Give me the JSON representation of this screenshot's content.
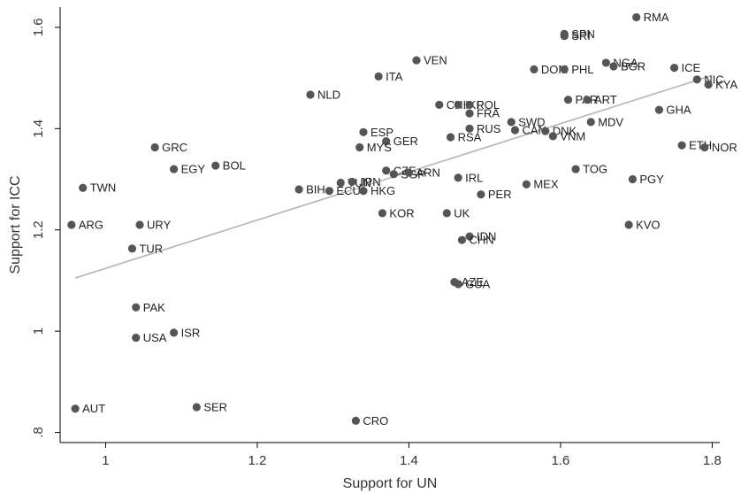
{
  "chart_data": {
    "type": "scatter",
    "xlabel": "Support for UN",
    "ylabel": "Support for ICC",
    "xlim": [
      0.94,
      1.81
    ],
    "ylim": [
      0.78,
      1.64
    ],
    "grid": false,
    "x_ticks": [
      {
        "value": 1,
        "label": "1"
      },
      {
        "value": 1.2,
        "label": "1.2"
      },
      {
        "value": 1.4,
        "label": "1.4"
      },
      {
        "value": 1.6,
        "label": "1.6"
      },
      {
        "value": 1.8,
        "label": "1.8"
      }
    ],
    "y_ticks": [
      {
        "value": 0.8,
        "label": ".8"
      },
      {
        "value": 1,
        "label": "1"
      },
      {
        "value": 1.2,
        "label": "1.2"
      },
      {
        "value": 1.4,
        "label": "1.4"
      },
      {
        "value": 1.6,
        "label": "1.6"
      }
    ],
    "fit_line": {
      "x": [
        0.96,
        1.8
      ],
      "y": [
        1.105,
        1.505
      ]
    },
    "points": [
      {
        "label": "RMA",
        "x": 1.7,
        "y": 1.62
      },
      {
        "label": "SPN",
        "x": 1.605,
        "y": 1.587
      },
      {
        "label": "SRI",
        "x": 1.605,
        "y": 1.583
      },
      {
        "label": "VEN",
        "x": 1.41,
        "y": 1.535
      },
      {
        "label": "NGA",
        "x": 1.66,
        "y": 1.53
      },
      {
        "label": "BGR",
        "x": 1.67,
        "y": 1.523
      },
      {
        "label": "ICE",
        "x": 1.75,
        "y": 1.52
      },
      {
        "label": "DOM",
        "x": 1.565,
        "y": 1.517
      },
      {
        "label": "PHL",
        "x": 1.605,
        "y": 1.517
      },
      {
        "label": "ITA",
        "x": 1.36,
        "y": 1.503
      },
      {
        "label": "NIC",
        "x": 1.78,
        "y": 1.497
      },
      {
        "label": "KYA",
        "x": 1.795,
        "y": 1.487
      },
      {
        "label": "NLD",
        "x": 1.27,
        "y": 1.467
      },
      {
        "label": "PAR",
        "x": 1.61,
        "y": 1.457
      },
      {
        "label": "ART",
        "x": 1.635,
        "y": 1.457
      },
      {
        "label": "CHI",
        "x": 1.44,
        "y": 1.447
      },
      {
        "label": "IKR",
        "x": 1.465,
        "y": 1.447
      },
      {
        "label": "POL",
        "x": 1.48,
        "y": 1.447
      },
      {
        "label": "FRA",
        "x": 1.48,
        "y": 1.43
      },
      {
        "label": "GHA",
        "x": 1.73,
        "y": 1.437
      },
      {
        "label": "SWD",
        "x": 1.535,
        "y": 1.413
      },
      {
        "label": "MDV",
        "x": 1.64,
        "y": 1.413
      },
      {
        "label": "RUS",
        "x": 1.48,
        "y": 1.4
      },
      {
        "label": "CAN",
        "x": 1.54,
        "y": 1.397
      },
      {
        "label": "DNK",
        "x": 1.58,
        "y": 1.395
      },
      {
        "label": "ESP",
        "x": 1.34,
        "y": 1.393
      },
      {
        "label": "VNM",
        "x": 1.59,
        "y": 1.385
      },
      {
        "label": "RSA",
        "x": 1.455,
        "y": 1.383
      },
      {
        "label": "GER",
        "x": 1.37,
        "y": 1.375
      },
      {
        "label": "ETH",
        "x": 1.76,
        "y": 1.367
      },
      {
        "label": "GRC",
        "x": 1.065,
        "y": 1.363
      },
      {
        "label": "MYS",
        "x": 1.335,
        "y": 1.363
      },
      {
        "label": "NOR",
        "x": 1.79,
        "y": 1.363
      },
      {
        "label": "BOL",
        "x": 1.145,
        "y": 1.327
      },
      {
        "label": "EGY",
        "x": 1.09,
        "y": 1.32
      },
      {
        "label": "TOG",
        "x": 1.62,
        "y": 1.32
      },
      {
        "label": "CZE",
        "x": 1.37,
        "y": 1.317
      },
      {
        "label": "SGP",
        "x": 1.38,
        "y": 1.31
      },
      {
        "label": "ARN",
        "x": 1.4,
        "y": 1.313
      },
      {
        "label": "IRL",
        "x": 1.465,
        "y": 1.303
      },
      {
        "label": "PGY",
        "x": 1.695,
        "y": 1.3
      },
      {
        "label": "TUN",
        "x": 1.31,
        "y": 1.293
      },
      {
        "label": "JPN",
        "x": 1.325,
        "y": 1.295
      },
      {
        "label": "MEX",
        "x": 1.555,
        "y": 1.29
      },
      {
        "label": "TWN",
        "x": 0.97,
        "y": 1.283
      },
      {
        "label": "BIH",
        "x": 1.255,
        "y": 1.28
      },
      {
        "label": "ECU",
        "x": 1.295,
        "y": 1.277
      },
      {
        "label": "HKG",
        "x": 1.34,
        "y": 1.277
      },
      {
        "label": "PER",
        "x": 1.495,
        "y": 1.27
      },
      {
        "label": "KOR",
        "x": 1.365,
        "y": 1.233
      },
      {
        "label": "UK",
        "x": 1.45,
        "y": 1.233
      },
      {
        "label": "ARG",
        "x": 0.955,
        "y": 1.21
      },
      {
        "label": "URY",
        "x": 1.045,
        "y": 1.21
      },
      {
        "label": "KVO",
        "x": 1.69,
        "y": 1.21
      },
      {
        "label": "IDN",
        "x": 1.48,
        "y": 1.187
      },
      {
        "label": "CHN",
        "x": 1.47,
        "y": 1.18
      },
      {
        "label": "TUR",
        "x": 1.035,
        "y": 1.163
      },
      {
        "label": "AZE",
        "x": 1.46,
        "y": 1.097
      },
      {
        "label": "GUA",
        "x": 1.465,
        "y": 1.093
      },
      {
        "label": "PAK",
        "x": 1.04,
        "y": 1.047
      },
      {
        "label": "ISR",
        "x": 1.09,
        "y": 0.997
      },
      {
        "label": "USA",
        "x": 1.04,
        "y": 0.987
      },
      {
        "label": "SER",
        "x": 1.12,
        "y": 0.85
      },
      {
        "label": "AUT",
        "x": 0.96,
        "y": 0.847
      },
      {
        "label": "CRO",
        "x": 1.33,
        "y": 0.823
      }
    ]
  }
}
